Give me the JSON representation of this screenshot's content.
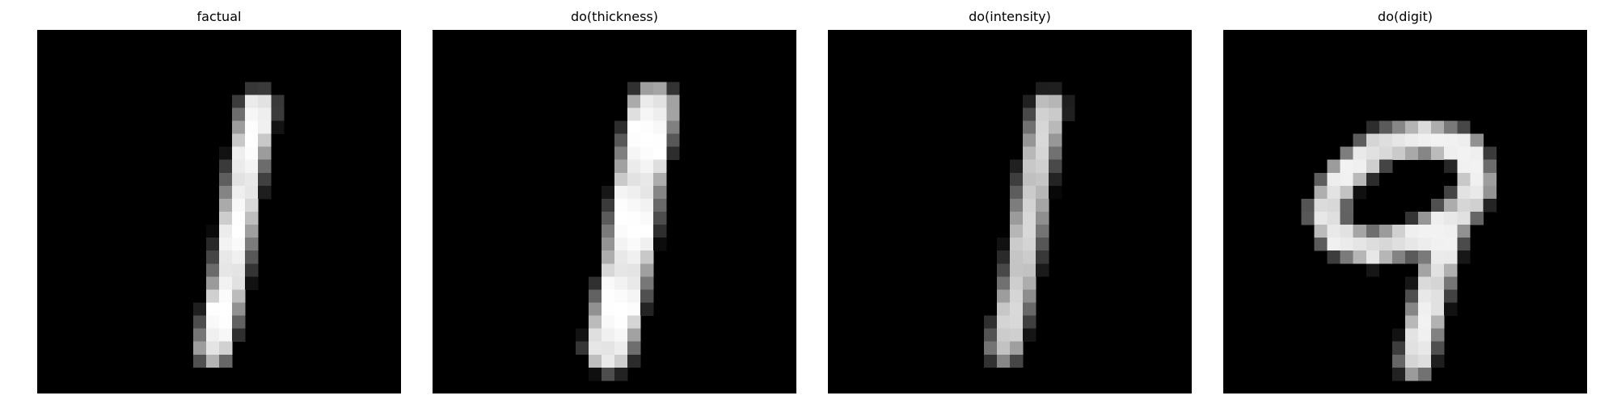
{
  "panels": [
    {
      "title": "factual"
    },
    {
      "title": "do(thickness)"
    },
    {
      "title": "do(intensity)"
    },
    {
      "title": "do(digit)"
    }
  ],
  "colors": {
    "background": "#ffffff",
    "image_background": "#000000",
    "stroke": "#ffffff"
  },
  "image_grid": "28x28 grayscale pixels"
}
